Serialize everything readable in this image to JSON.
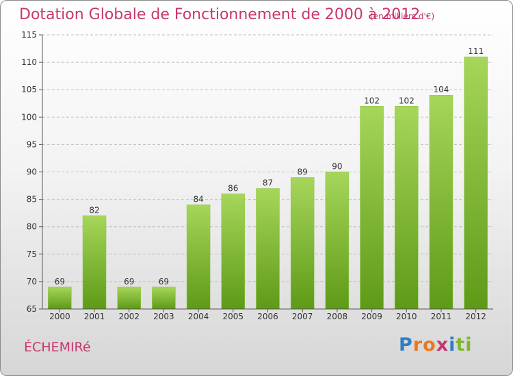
{
  "header": {
    "title": "Dotation Globale de Fonctionnement de 2000 à 2012",
    "subtitle": "(en milliers d'€)"
  },
  "footer": {
    "commune": "ÉCHEMIRé",
    "logo_letters": [
      "P",
      "r",
      "o",
      "x",
      "i",
      "t",
      "i"
    ],
    "logo_colors": [
      "#2f7fc4",
      "#e8781f",
      "#e8781f",
      "#c9356f",
      "#2f7fc4",
      "#7fb82a",
      "#7fb82a"
    ]
  },
  "colors": {
    "accent": "#c9356f",
    "bar_light": "#a6d65a",
    "bar_dark": "#5e9a17",
    "axis": "#555555",
    "grid": "#bdbdbd"
  },
  "chart_data": {
    "type": "bar",
    "categories": [
      "2000",
      "2001",
      "2002",
      "2003",
      "2004",
      "2005",
      "2006",
      "2007",
      "2008",
      "2009",
      "2010",
      "2011",
      "2012"
    ],
    "values": [
      69,
      82,
      69,
      69,
      84,
      86,
      87,
      89,
      90,
      102,
      102,
      104,
      111
    ],
    "data_labels": [
      "69",
      "82",
      "69",
      "69",
      "84",
      "86",
      "87",
      "89",
      "90",
      "102",
      "102",
      "104",
      "111"
    ],
    "ylim": [
      65,
      115
    ],
    "yticks": [
      65,
      70,
      75,
      80,
      85,
      90,
      95,
      100,
      105,
      110,
      115
    ],
    "grid": "horizontal dashed",
    "title": "Dotation Globale de Fonctionnement de 2000 à 2012",
    "xlabel": "",
    "ylabel": ""
  }
}
